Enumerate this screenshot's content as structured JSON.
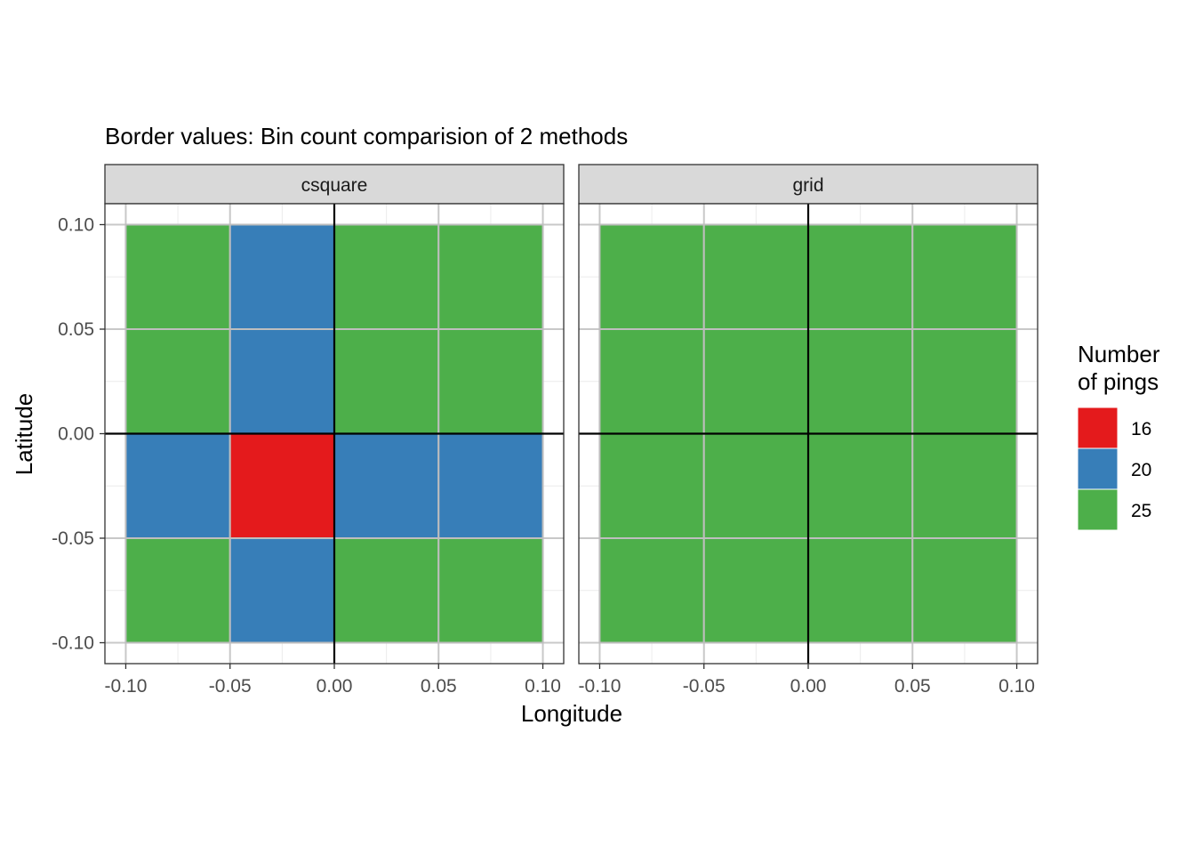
{
  "chart_data": {
    "type": "heatmap",
    "title": "Border values: Bin count comparision of 2 methods",
    "xlabel": "Longitude",
    "ylabel": "Latitude",
    "xlim": [
      -0.11,
      0.11
    ],
    "ylim": [
      -0.11,
      0.11
    ],
    "x_ticks": [
      -0.1,
      -0.05,
      0.0,
      0.05,
      0.1
    ],
    "y_ticks": [
      -0.1,
      -0.05,
      0.0,
      0.05,
      0.1
    ],
    "x_tick_labels": [
      "-0.10",
      "-0.05",
      "0.00",
      "0.05",
      "0.10"
    ],
    "y_tick_labels": [
      "-0.10",
      "-0.05",
      "0.00",
      "0.05",
      "0.10"
    ],
    "bin_width": 0.05,
    "grid": true,
    "facets": [
      {
        "name": "csquare",
        "cells": [
          {
            "x": -0.075,
            "y": 0.075,
            "value": 25
          },
          {
            "x": -0.025,
            "y": 0.075,
            "value": 20
          },
          {
            "x": 0.025,
            "y": 0.075,
            "value": 25
          },
          {
            "x": 0.075,
            "y": 0.075,
            "value": 25
          },
          {
            "x": -0.075,
            "y": 0.025,
            "value": 25
          },
          {
            "x": -0.025,
            "y": 0.025,
            "value": 20
          },
          {
            "x": 0.025,
            "y": 0.025,
            "value": 25
          },
          {
            "x": 0.075,
            "y": 0.025,
            "value": 25
          },
          {
            "x": -0.075,
            "y": -0.025,
            "value": 20
          },
          {
            "x": -0.025,
            "y": -0.025,
            "value": 16
          },
          {
            "x": 0.025,
            "y": -0.025,
            "value": 20
          },
          {
            "x": 0.075,
            "y": -0.025,
            "value": 20
          },
          {
            "x": -0.075,
            "y": -0.075,
            "value": 25
          },
          {
            "x": -0.025,
            "y": -0.075,
            "value": 20
          },
          {
            "x": 0.025,
            "y": -0.075,
            "value": 25
          },
          {
            "x": 0.075,
            "y": -0.075,
            "value": 25
          }
        ]
      },
      {
        "name": "grid",
        "cells": [
          {
            "x": -0.075,
            "y": 0.075,
            "value": 25
          },
          {
            "x": -0.025,
            "y": 0.075,
            "value": 25
          },
          {
            "x": 0.025,
            "y": 0.075,
            "value": 25
          },
          {
            "x": 0.075,
            "y": 0.075,
            "value": 25
          },
          {
            "x": -0.075,
            "y": 0.025,
            "value": 25
          },
          {
            "x": -0.025,
            "y": 0.025,
            "value": 25
          },
          {
            "x": 0.025,
            "y": 0.025,
            "value": 25
          },
          {
            "x": 0.075,
            "y": 0.025,
            "value": 25
          },
          {
            "x": -0.075,
            "y": -0.025,
            "value": 25
          },
          {
            "x": -0.025,
            "y": -0.025,
            "value": 25
          },
          {
            "x": 0.025,
            "y": -0.025,
            "value": 25
          },
          {
            "x": 0.075,
            "y": -0.025,
            "value": 25
          },
          {
            "x": -0.075,
            "y": -0.075,
            "value": 25
          },
          {
            "x": -0.025,
            "y": -0.075,
            "value": 25
          },
          {
            "x": 0.025,
            "y": -0.075,
            "value": 25
          },
          {
            "x": 0.075,
            "y": -0.075,
            "value": 25
          }
        ]
      }
    ],
    "legend": {
      "title_lines": [
        "Number",
        "of pings"
      ],
      "placement": "right",
      "entries": [
        {
          "label": "16",
          "value": 16,
          "color": "#E41A1C"
        },
        {
          "label": "20",
          "value": 20,
          "color": "#377EB8"
        },
        {
          "label": "25",
          "value": 25,
          "color": "#4DAF4A"
        }
      ]
    }
  },
  "colors": {
    "strip_background": "#d9d9d9",
    "panel_border": "#333333",
    "grid_major": "#c8c8c8",
    "grid_minor": "#ececec",
    "cell_border": "#bebebe",
    "zero_line": "#000000"
  }
}
